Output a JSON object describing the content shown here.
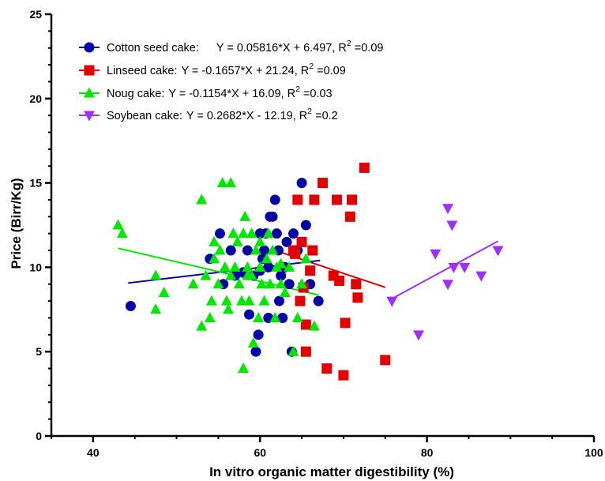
{
  "chart_data": {
    "type": "scatter",
    "xlabel": "In vitro organic matter digestibility (%)",
    "ylabel": "Price (Birr/Kg)",
    "xlim": [
      35,
      100
    ],
    "ylim": [
      0,
      25
    ],
    "x_ticks": [
      40,
      60,
      80,
      100
    ],
    "y_ticks": [
      0,
      5,
      10,
      15,
      20,
      25
    ],
    "x_tick_labels": [
      "40",
      "60",
      "80",
      "100"
    ],
    "y_tick_labels": [
      "0",
      "5",
      "10",
      "15",
      "20",
      "25"
    ],
    "grid": false,
    "legend_position": "top-left",
    "series": [
      {
        "name": "Cotton seed cake:",
        "equation": "Y = 0.05816*X + 6.497, R",
        "r2_label": "2",
        "r2_value": " =0.09",
        "color": "#0000a8",
        "marker": "circle",
        "slope": 0.05816,
        "intercept": 6.497,
        "fit_x_range": [
          44.2,
          67.2
        ],
        "points": [
          [
            44.5,
            7.7
          ],
          [
            54.0,
            10.5
          ],
          [
            55.2,
            12
          ],
          [
            55.6,
            9
          ],
          [
            56.5,
            11
          ],
          [
            57.0,
            9.5
          ],
          [
            58.0,
            9.7
          ],
          [
            58.5,
            11
          ],
          [
            58.7,
            7.2
          ],
          [
            59.2,
            9.5
          ],
          [
            59.5,
            5
          ],
          [
            59.8,
            6
          ],
          [
            60.0,
            12
          ],
          [
            60.3,
            10.5
          ],
          [
            60.5,
            11
          ],
          [
            60.7,
            12
          ],
          [
            61.0,
            10
          ],
          [
            61.2,
            13
          ],
          [
            61.5,
            13
          ],
          [
            61.8,
            14
          ],
          [
            62.0,
            12
          ],
          [
            62.2,
            11
          ],
          [
            62.3,
            8
          ],
          [
            62.5,
            9.5
          ],
          [
            62.7,
            7
          ],
          [
            63.0,
            10
          ],
          [
            63.2,
            11.5
          ],
          [
            63.5,
            9
          ],
          [
            63.8,
            5
          ],
          [
            64.0,
            12
          ],
          [
            64.5,
            11
          ],
          [
            65.0,
            15
          ],
          [
            65.5,
            12.5
          ],
          [
            66.0,
            9
          ],
          [
            67.0,
            8
          ],
          [
            61.0,
            7
          ],
          [
            60.0,
            9.8
          ]
        ]
      },
      {
        "name": "Linseed cake:",
        "equation": "Y = -0.1657*X + 21.24, R",
        "r2_label": "2",
        "r2_value": " =0.09",
        "color": "#e30000",
        "marker": "square",
        "slope": -0.1657,
        "intercept": 21.24,
        "fit_x_range": [
          61.5,
          75.0
        ],
        "points": [
          [
            64.0,
            11
          ],
          [
            64.2,
            10.8
          ],
          [
            64.5,
            14
          ],
          [
            64.8,
            8
          ],
          [
            65.0,
            11.5
          ],
          [
            65.2,
            8.8
          ],
          [
            65.5,
            6.6
          ],
          [
            65.5,
            5
          ],
          [
            66.0,
            9.8
          ],
          [
            66.3,
            11
          ],
          [
            66.5,
            14
          ],
          [
            67.5,
            15
          ],
          [
            68.0,
            4
          ],
          [
            68.8,
            9.5
          ],
          [
            69.5,
            9.2
          ],
          [
            69.2,
            14
          ],
          [
            70.0,
            3.6
          ],
          [
            70.2,
            6.7
          ],
          [
            70.8,
            13
          ],
          [
            71.0,
            14
          ],
          [
            71.5,
            9
          ],
          [
            71.7,
            8.2
          ],
          [
            72.5,
            15.9
          ],
          [
            75.0,
            4.5
          ]
        ]
      },
      {
        "name": "Noug cake:",
        "equation": "Y = -0.1154*X + 16.09, R",
        "r2_label": "2",
        "r2_value": " =0.03",
        "color": "#00e800",
        "marker": "triangle",
        "slope": -0.1154,
        "intercept": 16.09,
        "fit_x_range": [
          43.0,
          67.0
        ],
        "points": [
          [
            43.0,
            12.5
          ],
          [
            43.5,
            12
          ],
          [
            47.5,
            9.5
          ],
          [
            47.5,
            7.5
          ],
          [
            48.5,
            8.5
          ],
          [
            52.0,
            9
          ],
          [
            53.0,
            14
          ],
          [
            53.0,
            6.5
          ],
          [
            53.5,
            9.5
          ],
          [
            54.0,
            7
          ],
          [
            54.2,
            8
          ],
          [
            54.5,
            11.5
          ],
          [
            54.5,
            10.5
          ],
          [
            55.0,
            9
          ],
          [
            55.2,
            11
          ],
          [
            55.5,
            15
          ],
          [
            55.8,
            10
          ],
          [
            56.0,
            8
          ],
          [
            56.2,
            7.5
          ],
          [
            56.5,
            9.5
          ],
          [
            56.5,
            15
          ],
          [
            56.8,
            12
          ],
          [
            57.0,
            10
          ],
          [
            57.3,
            11.5
          ],
          [
            57.5,
            9
          ],
          [
            57.8,
            8
          ],
          [
            58.0,
            12
          ],
          [
            58.0,
            4
          ],
          [
            58.2,
            13
          ],
          [
            58.5,
            10
          ],
          [
            58.7,
            8
          ],
          [
            59.0,
            12
          ],
          [
            59.0,
            9.5
          ],
          [
            59.2,
            5.5
          ],
          [
            59.5,
            11
          ],
          [
            59.8,
            7
          ],
          [
            60.0,
            10
          ],
          [
            60.2,
            9
          ],
          [
            60.5,
            8
          ],
          [
            60.8,
            10.5
          ],
          [
            61.0,
            12
          ],
          [
            61.2,
            9
          ],
          [
            61.5,
            11
          ],
          [
            61.8,
            7
          ],
          [
            62.0,
            10
          ],
          [
            62.5,
            9
          ],
          [
            63.0,
            8.5
          ],
          [
            63.5,
            10
          ],
          [
            64.0,
            5
          ],
          [
            64.5,
            7
          ],
          [
            65.0,
            9
          ],
          [
            65.5,
            10.5
          ],
          [
            66.5,
            6.5
          ],
          [
            62.5,
            10.2
          ],
          [
            60.0,
            11.5
          ],
          [
            58.5,
            9.5
          ]
        ]
      },
      {
        "name": "Soybean cake:",
        "equation": "Y = 0.2682*X - 12.19, R",
        "r2_label": "2",
        "r2_value": " =0.2",
        "color": "#9b30ff",
        "marker": "triangle-down",
        "slope": 0.2682,
        "intercept": -12.19,
        "fit_x_range": [
          75.5,
          88.5
        ],
        "points": [
          [
            75.8,
            8
          ],
          [
            79.0,
            6
          ],
          [
            81.0,
            10.8
          ],
          [
            82.5,
            13.5
          ],
          [
            82.5,
            9
          ],
          [
            83.0,
            12.5
          ],
          [
            83.2,
            10
          ],
          [
            84.5,
            10
          ],
          [
            86.5,
            9.5
          ],
          [
            88.5,
            11
          ]
        ]
      }
    ]
  }
}
